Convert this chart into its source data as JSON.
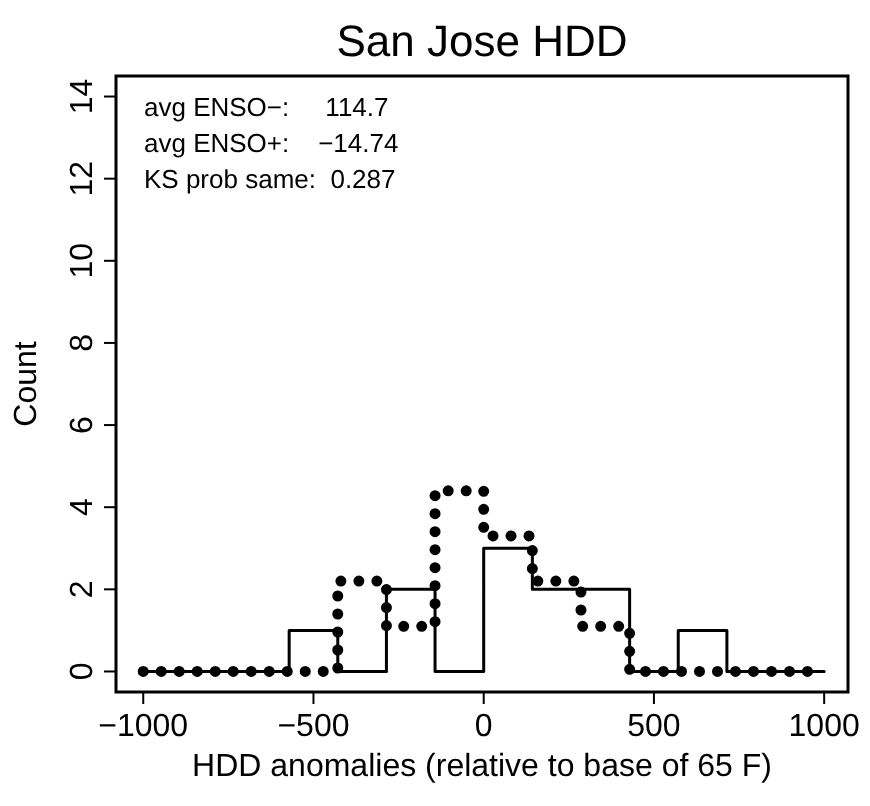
{
  "chart_data": {
    "type": "step",
    "title": "San Jose HDD",
    "xlabel": "HDD anomalies (relative to base of 65 F)",
    "ylabel": "Count",
    "x": [
      -1000,
      -857.1,
      -714.3,
      -571.4,
      -428.6,
      -285.7,
      -142.9,
      0,
      142.9,
      285.7,
      428.6,
      571.4,
      714.3,
      857.1,
      1000
    ],
    "series": [
      {
        "color": "#000000",
        "line_style": "solid",
        "values": [
          0,
          0,
          0,
          1,
          0,
          2,
          0,
          3,
          2,
          2,
          0,
          1,
          0,
          0,
          0
        ]
      },
      {
        "color": "#000000",
        "line_style": "dotted",
        "values": [
          0,
          0,
          0,
          0,
          2.2,
          1.1,
          4.4,
          3.3,
          2.2,
          1.1,
          0,
          0,
          0,
          0,
          0
        ]
      }
    ],
    "xlim": [
      -1080,
      1070
    ],
    "ylim": [
      -0.5,
      14.5
    ],
    "xticks": [
      -1000,
      -500,
      0,
      500,
      1000
    ],
    "yticks": [
      0,
      2,
      4,
      6,
      8,
      10,
      12,
      14
    ],
    "annotations": [
      "avg ENSO−:     114.7",
      "avg ENSO+:    −14.74",
      "KS prob same:  0.287"
    ]
  }
}
